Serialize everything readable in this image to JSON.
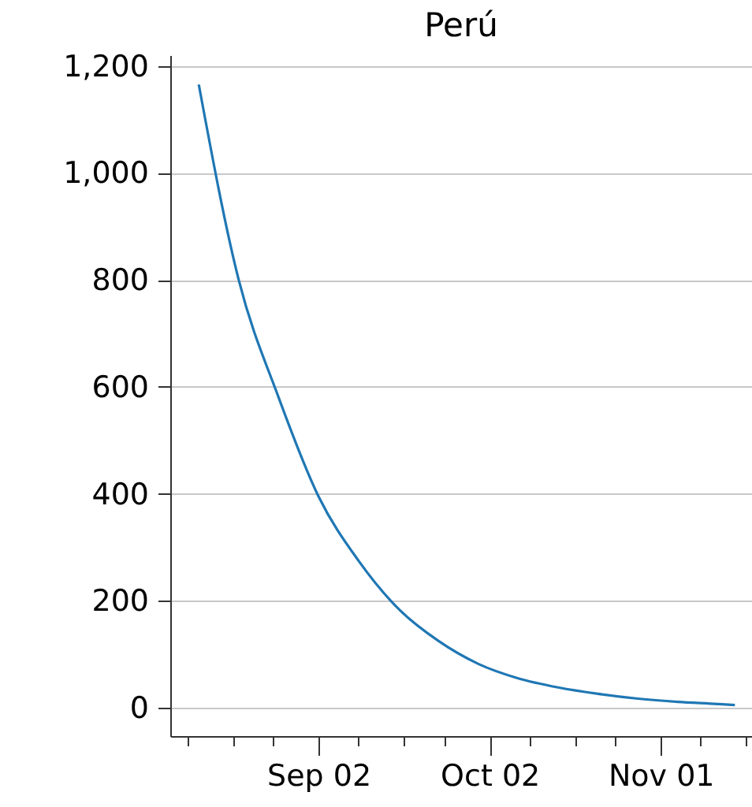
{
  "chart_data": {
    "type": "line",
    "title": "Perú",
    "x": [
      "--08-12",
      "--08-19",
      "--08-26",
      "--09-02",
      "--09-09",
      "--09-16",
      "--09-23",
      "--09-30",
      "--10-07",
      "--10-14",
      "--10-21",
      "--10-28",
      "--11-04",
      "--11-11",
      "--11-14"
    ],
    "series": [
      {
        "color": "#1f77b4",
        "values": [
          1165,
          800,
          580,
          395,
          275,
          185,
          125,
          82,
          55,
          38,
          26,
          17,
          11,
          7,
          5
        ]
      }
    ],
    "xlim": [
      "--08-07",
      "--11-17"
    ],
    "xticks": [
      {
        "value": "--08-10",
        "label": null
      },
      {
        "value": "--08-18",
        "label": null
      },
      {
        "value": "--08-25",
        "label": null
      },
      {
        "value": "--09-02",
        "label": "Sep 02"
      },
      {
        "value": "--09-09",
        "label": null
      },
      {
        "value": "--09-17",
        "label": null
      },
      {
        "value": "--09-24",
        "label": null
      },
      {
        "value": "--10-02",
        "label": "Oct 02"
      },
      {
        "value": "--10-09",
        "label": null
      },
      {
        "value": "--10-17",
        "label": null
      },
      {
        "value": "--10-24",
        "label": null
      },
      {
        "value": "--11-01",
        "label": "Nov 01"
      },
      {
        "value": "--11-08",
        "label": null
      },
      {
        "value": "--11-16",
        "label": null
      }
    ],
    "ylim": [
      -53,
      1220
    ],
    "yticks": [
      0,
      200,
      400,
      600,
      800,
      {
        "value": 1000,
        "label": "1,000"
      },
      {
        "value": 1200,
        "label": "1,200"
      }
    ],
    "grid": "y",
    "marker": "none",
    "line_style": "solid"
  }
}
